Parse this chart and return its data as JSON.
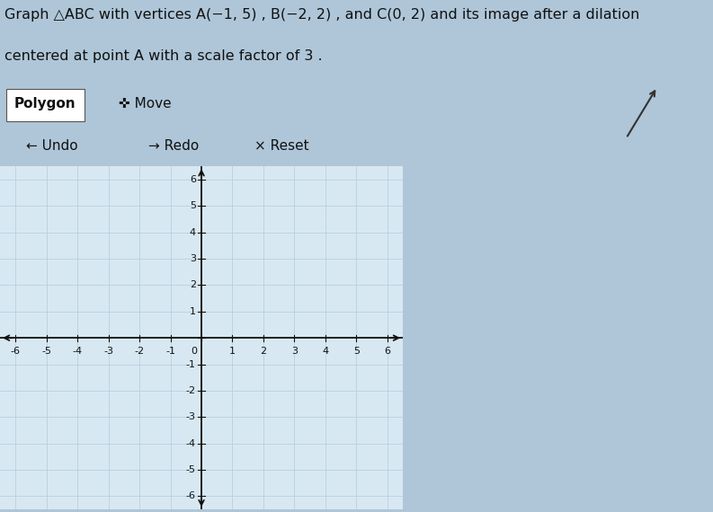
{
  "title_text_line1": "Graph △ABC with vertices A(−1, 5) , B(−2, 2) , and C(0, 2) and its image after a dilation",
  "title_text_line2": "centered at point A with a scale factor of 3 .",
  "title_fontsize": 11.5,
  "polygon_btn_text": "Polygon",
  "move_btn_text": "✜ Move",
  "undo_text": "← Undo",
  "redo_text": "→ Redo",
  "reset_text": "× Reset",
  "xlim": [
    -6.5,
    6.5
  ],
  "ylim": [
    -6.5,
    6.5
  ],
  "xticks": [
    -6,
    -5,
    -4,
    -3,
    -2,
    -1,
    0,
    1,
    2,
    3,
    4,
    5,
    6
  ],
  "yticks": [
    -6,
    -5,
    -4,
    -3,
    -2,
    -1,
    1,
    2,
    3,
    4,
    5,
    6
  ],
  "grid_color": "#b8d0e0",
  "grid_linewidth": 0.6,
  "axis_color": "#111111",
  "tick_fontsize": 8,
  "bg_outer": "#aec6d8",
  "bg_grid": "#d8e8f2",
  "toolbar_bg": "#7b9ab5",
  "undo_bar_bg": "#9ab4c8",
  "polygon_btn_bg": "#ffffff",
  "btn_text_color": "#111111",
  "toolbar_text_color": "#111111"
}
